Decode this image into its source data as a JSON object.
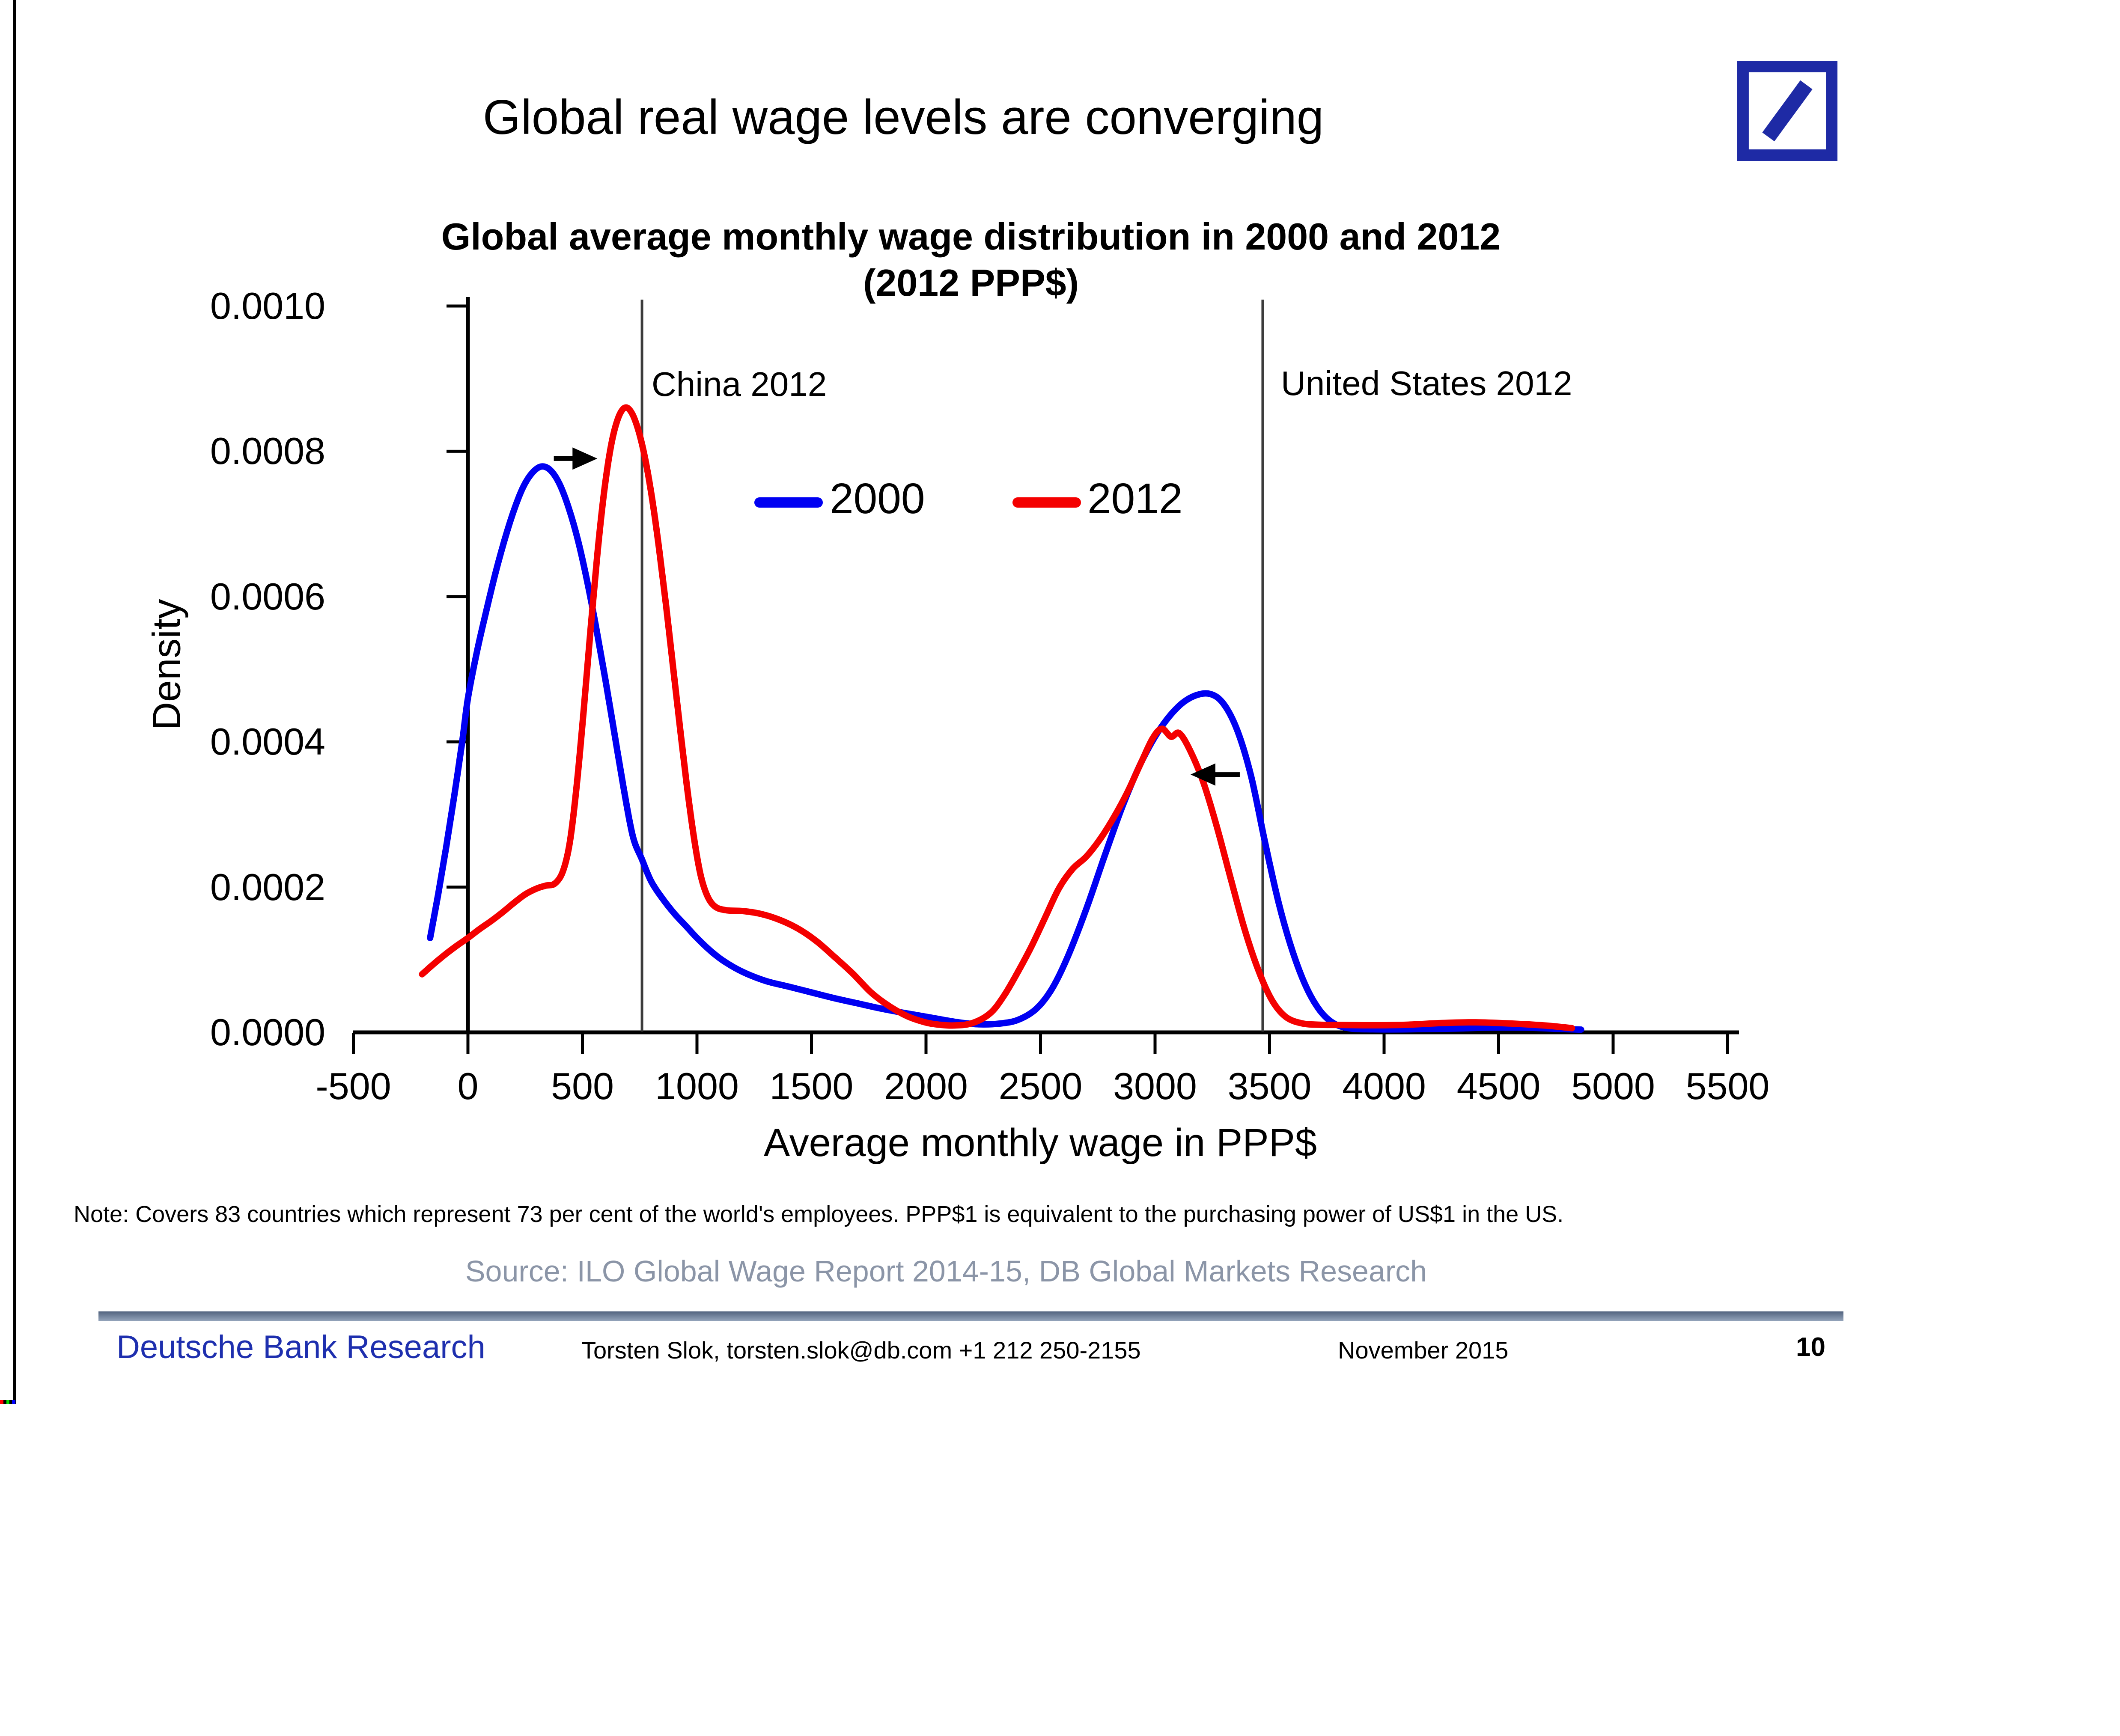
{
  "page": {
    "title": "Global real wage levels are converging"
  },
  "logo": {
    "name": "deutsche-bank-logo",
    "color": "#1e2aa5"
  },
  "note": "Note: Covers 83 countries which represent 73 per cent of the world's employees. PPP$1 is equivalent to the purchasing power of US$1 in the US.",
  "source": "Source: ILO Global Wage Report 2014-15, DB Global Markets Research",
  "footer": {
    "brand": "Deutsche Bank Research",
    "contact": "Torsten Slok, torsten.slok@db.com  +1 212 250-2155",
    "date": "November 2015",
    "page": "10"
  },
  "edge_artifact": {
    "colors": [
      "#ff0000",
      "#000000",
      "#00dd00",
      "#000000",
      "#0000ff"
    ]
  },
  "chart_data": {
    "type": "line",
    "title": "Global average monthly wage distribution in 2000 and 2012",
    "subtitle": "(2012 PPP$)",
    "xlabel": "Average monthly wage in PPP$",
    "ylabel": "Density",
    "xlim": [
      -500,
      5500
    ],
    "ylim": [
      0,
      0.001
    ],
    "grid": false,
    "legend_position": "upper-middle",
    "x_ticks": [
      {
        "label": "-500",
        "value": -500
      },
      {
        "label": "0",
        "value": 0
      },
      {
        "label": "500",
        "value": 500
      },
      {
        "label": "1000",
        "value": 1000
      },
      {
        "label": "1500",
        "value": 1500
      },
      {
        "label": "2000",
        "value": 2000
      },
      {
        "label": "2500",
        "value": 2500
      },
      {
        "label": "3000",
        "value": 3000
      },
      {
        "label": "3500",
        "value": 3500
      },
      {
        "label": "4000",
        "value": 4000
      },
      {
        "label": "4500",
        "value": 4500
      },
      {
        "label": "5000",
        "value": 5000
      },
      {
        "label": "5500",
        "value": 5500
      }
    ],
    "y_ticks": [
      {
        "label": "0.0000",
        "value": 0
      },
      {
        "label": "0.0002",
        "value": 0.0002
      },
      {
        "label": "0.0004",
        "value": 0.0004
      },
      {
        "label": "0.0006",
        "value": 0.0006
      },
      {
        "label": "0.0008",
        "value": 0.0008
      },
      {
        "label": "0.0010",
        "value": 0.001
      }
    ],
    "legend": [
      {
        "label": "2000",
        "color": "#0000f2"
      },
      {
        "label": "2012",
        "color": "#f40000"
      }
    ],
    "ref_lines": [
      {
        "label": "China 2012",
        "x": 760
      },
      {
        "label": "United States 2012",
        "x": 3470
      }
    ],
    "arrows": [
      {
        "from": [
          375,
          0.00079
        ],
        "to": [
          565,
          0.00079
        ]
      },
      {
        "from": [
          3370,
          0.000355
        ],
        "to": [
          3155,
          0.000355
        ]
      }
    ],
    "series": [
      {
        "name": "2000",
        "color": "#0000f2",
        "points": [
          [
            -165,
            0.00013
          ],
          [
            -130,
            0.00019
          ],
          [
            -95,
            0.000255
          ],
          [
            -60,
            0.000325
          ],
          [
            -25,
            0.0004
          ],
          [
            0,
            0.00046
          ],
          [
            40,
            0.000525
          ],
          [
            80,
            0.00058
          ],
          [
            120,
            0.000632
          ],
          [
            160,
            0.000678
          ],
          [
            200,
            0.000718
          ],
          [
            240,
            0.00075
          ],
          [
            280,
            0.00077
          ],
          [
            320,
            0.000779
          ],
          [
            360,
            0.000774
          ],
          [
            400,
            0.000755
          ],
          [
            440,
            0.000722
          ],
          [
            480,
            0.000678
          ],
          [
            520,
            0.000622
          ],
          [
            560,
            0.000557
          ],
          [
            600,
            0.000486
          ],
          [
            640,
            0.000411
          ],
          [
            680,
            0.000336
          ],
          [
            720,
            0.00027
          ],
          [
            760,
            0.000238
          ],
          [
            800,
            0.000208
          ],
          [
            850,
            0.000184
          ],
          [
            900,
            0.000164
          ],
          [
            950,
            0.000147
          ],
          [
            1000,
            0.00013
          ],
          [
            1060,
            0.000112
          ],
          [
            1120,
            9.75e-05
          ],
          [
            1200,
            8.32e-05
          ],
          [
            1300,
            7.08e-05
          ],
          [
            1400,
            6.3e-05
          ],
          [
            1500,
            5.5e-05
          ],
          [
            1600,
            4.7e-05
          ],
          [
            1700,
            4e-05
          ],
          [
            1800,
            3.3e-05
          ],
          [
            1900,
            2.7e-05
          ],
          [
            2000,
            2.15e-05
          ],
          [
            2080,
            1.7e-05
          ],
          [
            2160,
            1.3e-05
          ],
          [
            2240,
            1.1e-05
          ],
          [
            2320,
            1.2e-05
          ],
          [
            2400,
            1.7e-05
          ],
          [
            2480,
            3.2e-05
          ],
          [
            2550,
            6e-05
          ],
          [
            2620,
            0.000105
          ],
          [
            2700,
            0.00017
          ],
          [
            2780,
            0.000243
          ],
          [
            2860,
            0.000313
          ],
          [
            2940,
            0.000372
          ],
          [
            3020,
            0.000417
          ],
          [
            3100,
            0.000448
          ],
          [
            3170,
            0.000463
          ],
          [
            3240,
            0.000466
          ],
          [
            3300,
            0.000452
          ],
          [
            3360,
            0.000415
          ],
          [
            3420,
            0.000352
          ],
          [
            3480,
            0.000262
          ],
          [
            3540,
            0.000178
          ],
          [
            3600,
            0.000112
          ],
          [
            3660,
            6.25e-05
          ],
          [
            3720,
            3e-05
          ],
          [
            3780,
            1.25e-05
          ],
          [
            3850,
            5.5e-06
          ],
          [
            3950,
            4.2e-06
          ],
          [
            4100,
            4.2e-06
          ],
          [
            4300,
            5.2e-06
          ],
          [
            4500,
            6.8e-06
          ],
          [
            4650,
            6.2e-06
          ],
          [
            4780,
            4.5e-06
          ],
          [
            4860,
            3.8e-06
          ]
        ]
      },
      {
        "name": "2012",
        "color": "#f40000",
        "points": [
          [
            -200,
            8e-05
          ],
          [
            -150,
            9.4e-05
          ],
          [
            -100,
            0.000107
          ],
          [
            -50,
            0.000119
          ],
          [
            0,
            0.00013
          ],
          [
            50,
            0.000142
          ],
          [
            100,
            0.000153
          ],
          [
            150,
            0.000165
          ],
          [
            200,
            0.000178
          ],
          [
            250,
            0.00019
          ],
          [
            300,
            0.000198
          ],
          [
            340,
            0.000202
          ],
          [
            380,
            0.000205
          ],
          [
            415,
            0.000222
          ],
          [
            445,
            0.000262
          ],
          [
            475,
            0.00034
          ],
          [
            505,
            0.000442
          ],
          [
            535,
            0.000553
          ],
          [
            565,
            0.000658
          ],
          [
            595,
            0.000745
          ],
          [
            625,
            0.000808
          ],
          [
            655,
            0.000845
          ],
          [
            685,
            0.00086
          ],
          [
            715,
            0.000853
          ],
          [
            745,
            0.000828
          ],
          [
            775,
            0.000788
          ],
          [
            805,
            0.000733
          ],
          [
            835,
            0.000665
          ],
          [
            865,
            0.000588
          ],
          [
            895,
            0.000505
          ],
          [
            925,
            0.000422
          ],
          [
            955,
            0.000342
          ],
          [
            985,
            0.000272
          ],
          [
            1015,
            0.000218
          ],
          [
            1045,
            0.000188
          ],
          [
            1080,
            0.000173
          ],
          [
            1130,
            0.000168
          ],
          [
            1200,
            0.000167
          ],
          [
            1280,
            0.000163
          ],
          [
            1360,
            0.000155
          ],
          [
            1440,
            0.000143
          ],
          [
            1520,
            0.000126
          ],
          [
            1600,
            0.000104
          ],
          [
            1680,
            8.1e-05
          ],
          [
            1760,
            5.5e-05
          ],
          [
            1840,
            3.6e-05
          ],
          [
            1920,
            2.2e-05
          ],
          [
            2000,
            1.35e-05
          ],
          [
            2060,
            1.05e-05
          ],
          [
            2120,
            9.5e-06
          ],
          [
            2200,
            1.25e-05
          ],
          [
            2280,
            2.62e-05
          ],
          [
            2340,
            5.02e-05
          ],
          [
            2400,
            8.25e-05
          ],
          [
            2460,
            0.000118
          ],
          [
            2520,
            0.000158
          ],
          [
            2580,
            0.000198
          ],
          [
            2640,
            0.000225
          ],
          [
            2700,
            0.000242
          ],
          [
            2760,
            0.000266
          ],
          [
            2820,
            0.000296
          ],
          [
            2880,
            0.000331
          ],
          [
            2940,
            0.000372
          ],
          [
            2990,
            0.000405
          ],
          [
            3030,
            0.000418
          ],
          [
            3070,
            0.000407
          ],
          [
            3105,
            0.000412
          ],
          [
            3150,
            0.00039
          ],
          [
            3210,
            0.000345
          ],
          [
            3270,
            0.000283
          ],
          [
            3330,
            0.000212
          ],
          [
            3390,
            0.000143
          ],
          [
            3450,
            8.65e-05
          ],
          [
            3510,
            4.45e-05
          ],
          [
            3570,
            2.15e-05
          ],
          [
            3640,
            1.25e-05
          ],
          [
            3720,
            1.05e-05
          ],
          [
            3820,
            1.02e-05
          ],
          [
            3950,
            9.8e-06
          ],
          [
            4100,
            1.05e-05
          ],
          [
            4250,
            1.28e-05
          ],
          [
            4400,
            1.38e-05
          ],
          [
            4550,
            1.22e-05
          ],
          [
            4700,
            9.5e-06
          ],
          [
            4820,
            5.8e-06
          ]
        ]
      }
    ]
  }
}
